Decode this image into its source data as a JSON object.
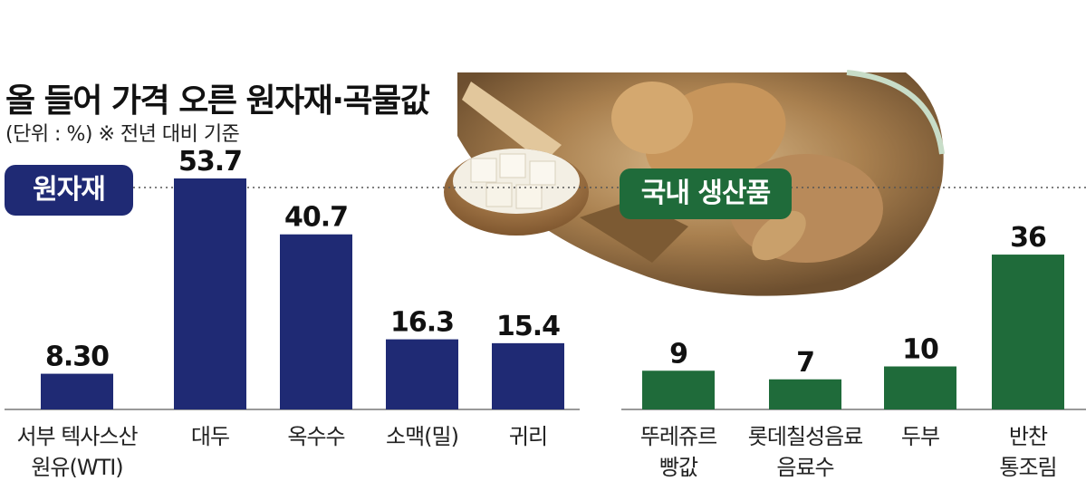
{
  "title": "올 들어 가격 오른 원자재·곡물값",
  "subtitle": "(단위 : %)  ※ 전년 대비 기준",
  "colors": {
    "raw": "#1f2a74",
    "domestic": "#1f6b3a",
    "axis": "#999999",
    "reference_line": "#555555"
  },
  "chart_data": [
    {
      "type": "bar",
      "group_label": "원자재",
      "color": "#1f2a74",
      "categories": [
        "서부 텍사스산\n원유(WTI)",
        "대두",
        "옥수수",
        "소맥(밀)",
        "귀리"
      ],
      "values": [
        8.3,
        53.7,
        40.7,
        16.3,
        15.4
      ],
      "value_labels": [
        "8.30",
        "53.7",
        "40.7",
        "16.3",
        "15.4"
      ],
      "ylim": [
        0,
        60
      ]
    },
    {
      "type": "bar",
      "group_label": "국내 생산품",
      "color": "#1f6b3a",
      "categories": [
        "뚜레쥬르\n빵값",
        "롯데칠성음료\n음료수",
        "두부",
        "반찬\n통조림"
      ],
      "values": [
        9,
        7,
        10,
        36
      ],
      "value_labels": [
        "9",
        "7",
        "10",
        "36"
      ],
      "ylim": [
        0,
        60
      ]
    }
  ]
}
